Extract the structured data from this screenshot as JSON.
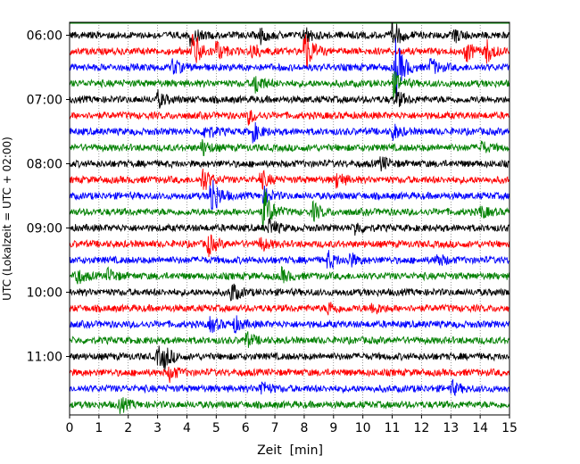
{
  "chart_data": {
    "type": "line",
    "title": "",
    "xlabel": "Zeit  [min]",
    "ylabel": "UTC (Lokalzeit = UTC + 02:00)",
    "xlim": [
      0,
      15
    ],
    "x_ticks": [
      "0",
      "1",
      "2",
      "3",
      "4",
      "5",
      "6",
      "7",
      "8",
      "9",
      "10",
      "11",
      "12",
      "13",
      "14",
      "15"
    ],
    "y_tick_labels": [
      "06:00",
      "07:00",
      "08:00",
      "09:00",
      "10:00",
      "11:00"
    ],
    "grid": "vertical dotted every minute",
    "trace_interval_min": 15,
    "trace_colors": [
      "#000000",
      "#ff0000",
      "#0000ff",
      "#008000"
    ],
    "traces": [
      {
        "start": "05:45",
        "color": "#008000",
        "events": []
      },
      {
        "start": "06:00",
        "color": "#000000",
        "events": [
          {
            "min": 4.1,
            "amp": 1.1
          },
          {
            "min": 6.5,
            "amp": 0.8
          },
          {
            "min": 8.0,
            "amp": 1.0
          },
          {
            "min": 11.0,
            "amp": 1.8
          },
          {
            "min": 13.1,
            "amp": 0.8
          }
        ]
      },
      {
        "start": "06:15",
        "color": "#ff0000",
        "events": [
          {
            "min": 4.2,
            "amp": 2.6
          },
          {
            "min": 5.0,
            "amp": 1.2
          },
          {
            "min": 6.2,
            "amp": 1.0
          },
          {
            "min": 8.0,
            "amp": 2.8
          },
          {
            "min": 13.5,
            "amp": 1.2
          },
          {
            "min": 14.2,
            "amp": 1.3
          }
        ]
      },
      {
        "start": "06:30",
        "color": "#0000ff",
        "events": [
          {
            "min": 3.5,
            "amp": 0.9
          },
          {
            "min": 11.1,
            "amp": 3.6
          },
          {
            "min": 12.3,
            "amp": 1.0
          }
        ]
      },
      {
        "start": "06:45",
        "color": "#008000",
        "events": [
          {
            "min": 6.3,
            "amp": 1.4
          },
          {
            "min": 11.0,
            "amp": 1.6
          }
        ]
      },
      {
        "start": "07:00",
        "color": "#000000",
        "events": [
          {
            "min": 3.0,
            "amp": 0.9
          },
          {
            "min": 11.1,
            "amp": 1.2
          }
        ]
      },
      {
        "start": "07:15",
        "color": "#ff0000",
        "events": [
          {
            "min": 6.1,
            "amp": 0.8
          }
        ]
      },
      {
        "start": "07:30",
        "color": "#0000ff",
        "events": [
          {
            "min": 4.6,
            "amp": 1.0
          },
          {
            "min": 6.2,
            "amp": 1.3
          },
          {
            "min": 11.0,
            "amp": 0.9
          }
        ]
      },
      {
        "start": "07:45",
        "color": "#008000",
        "events": [
          {
            "min": 4.5,
            "amp": 0.9
          },
          {
            "min": 14.0,
            "amp": 0.7
          }
        ]
      },
      {
        "start": "08:00",
        "color": "#000000",
        "events": [
          {
            "min": 10.6,
            "amp": 0.8
          }
        ]
      },
      {
        "start": "08:15",
        "color": "#ff0000",
        "events": [
          {
            "min": 4.5,
            "amp": 1.6
          },
          {
            "min": 6.5,
            "amp": 1.1
          },
          {
            "min": 9.1,
            "amp": 0.9
          }
        ]
      },
      {
        "start": "08:30",
        "color": "#0000ff",
        "events": [
          {
            "min": 4.8,
            "amp": 2.8
          },
          {
            "min": 6.6,
            "amp": 1.0
          }
        ]
      },
      {
        "start": "08:45",
        "color": "#008000",
        "events": [
          {
            "min": 6.6,
            "amp": 2.9
          },
          {
            "min": 8.3,
            "amp": 1.0
          },
          {
            "min": 14.0,
            "amp": 0.7
          }
        ]
      },
      {
        "start": "09:00",
        "color": "#000000",
        "events": [
          {
            "min": 6.8,
            "amp": 1.0
          },
          {
            "min": 9.7,
            "amp": 0.8
          }
        ]
      },
      {
        "start": "09:15",
        "color": "#ff0000",
        "events": [
          {
            "min": 4.7,
            "amp": 1.3
          },
          {
            "min": 6.5,
            "amp": 0.8
          }
        ]
      },
      {
        "start": "09:30",
        "color": "#0000ff",
        "events": [
          {
            "min": 8.8,
            "amp": 1.0
          },
          {
            "min": 9.5,
            "amp": 0.9
          },
          {
            "min": 12.5,
            "amp": 0.8
          }
        ]
      },
      {
        "start": "09:45",
        "color": "#008000",
        "events": [
          {
            "min": 0.2,
            "amp": 1.0
          },
          {
            "min": 1.3,
            "amp": 0.8
          },
          {
            "min": 7.2,
            "amp": 0.8
          }
        ]
      },
      {
        "start": "10:00",
        "color": "#000000",
        "events": [
          {
            "min": 5.5,
            "amp": 1.2
          }
        ]
      },
      {
        "start": "10:15",
        "color": "#ff0000",
        "events": [
          {
            "min": 8.8,
            "amp": 0.8
          },
          {
            "min": 10.3,
            "amp": 0.8
          }
        ]
      },
      {
        "start": "10:30",
        "color": "#0000ff",
        "events": [
          {
            "min": 4.8,
            "amp": 0.9
          },
          {
            "min": 5.6,
            "amp": 0.9
          }
        ]
      },
      {
        "start": "10:45",
        "color": "#008000",
        "events": [
          {
            "min": 6.0,
            "amp": 0.9
          }
        ]
      },
      {
        "start": "11:00",
        "color": "#000000",
        "events": [
          {
            "min": 3.0,
            "amp": 1.1
          },
          {
            "min": 3.2,
            "amp": 1.0
          }
        ]
      },
      {
        "start": "11:15",
        "color": "#ff0000",
        "events": [
          {
            "min": 3.4,
            "amp": 0.9
          }
        ]
      },
      {
        "start": "11:30",
        "color": "#0000ff",
        "events": [
          {
            "min": 6.5,
            "amp": 1.0
          },
          {
            "min": 13.0,
            "amp": 0.8
          }
        ]
      },
      {
        "start": "11:45",
        "color": "#008000",
        "events": [
          {
            "min": 1.7,
            "amp": 0.9
          }
        ]
      }
    ]
  }
}
